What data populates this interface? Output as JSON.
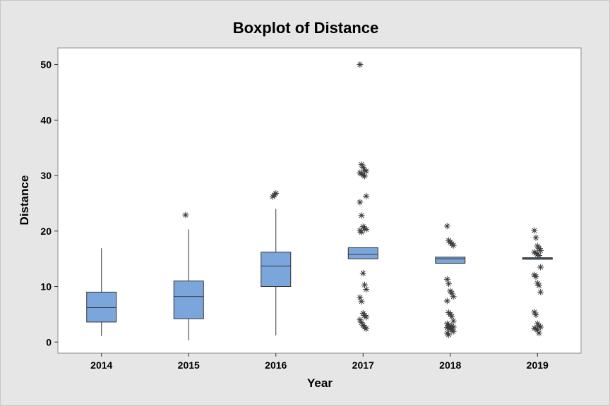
{
  "chart_data": {
    "type": "boxplot",
    "title": "Boxplot of Distance",
    "xlabel": "Year",
    "ylabel": "Distance",
    "ylim": [
      -2,
      53
    ],
    "yticks": [
      0,
      10,
      20,
      30,
      40,
      50
    ],
    "categories": [
      "2014",
      "2015",
      "2016",
      "2017",
      "2018",
      "2019"
    ],
    "box_color": "#7ba6dc",
    "series": [
      {
        "name": "2014",
        "q1": 3.6,
        "median": 6.2,
        "q3": 9.0,
        "whisker_low": 1.1,
        "whisker_high": 16.9,
        "outliers": []
      },
      {
        "name": "2015",
        "q1": 4.2,
        "median": 8.2,
        "q3": 11.0,
        "whisker_low": 0.3,
        "whisker_high": 20.3,
        "outliers": [
          22.9
        ]
      },
      {
        "name": "2016",
        "q1": 10.0,
        "median": 13.7,
        "q3": 16.2,
        "whisker_low": 1.2,
        "whisker_high": 24.0,
        "outliers": [
          26.2,
          26.5,
          26.8
        ]
      },
      {
        "name": "2017",
        "q1": 15.0,
        "median": 15.8,
        "q3": 17.0,
        "whisker_low": 15.0,
        "whisker_high": 17.0,
        "outliers": [
          50.0,
          32.0,
          31.5,
          31.0,
          30.8,
          30.5,
          30.3,
          30.1,
          29.9,
          26.3,
          25.2,
          22.8,
          20.8,
          20.5,
          20.3,
          20.1,
          19.8,
          12.4,
          10.3,
          9.5,
          8.0,
          7.3,
          5.2,
          4.8,
          4.5,
          4.0,
          3.5,
          3.0,
          2.7,
          2.4
        ]
      },
      {
        "name": "2018",
        "q1": 14.2,
        "median": 15.0,
        "q3": 15.3,
        "whisker_low": 14.2,
        "whisker_high": 15.3,
        "outliers": [
          20.9,
          18.3,
          18.0,
          17.7,
          17.4,
          11.3,
          10.5,
          9.2,
          8.8,
          8.2,
          7.4,
          5.3,
          5.0,
          4.6,
          3.8,
          3.3,
          3.0,
          2.9,
          2.8,
          2.7,
          2.6,
          2.5,
          2.4,
          2.2,
          1.9,
          1.6,
          1.3
        ]
      },
      {
        "name": "2019",
        "q1": 14.9,
        "median": 15.1,
        "q3": 15.2,
        "whisker_low": 14.9,
        "whisker_high": 15.2,
        "outliers": [
          20.1,
          18.8,
          17.3,
          16.9,
          16.5,
          16.2,
          16.0,
          15.8,
          15.6,
          13.5,
          12.1,
          11.8,
          10.6,
          10.2,
          9.0,
          5.4,
          4.9,
          3.3,
          2.9,
          2.7,
          2.5,
          2.4,
          2.2,
          1.6
        ]
      }
    ]
  }
}
